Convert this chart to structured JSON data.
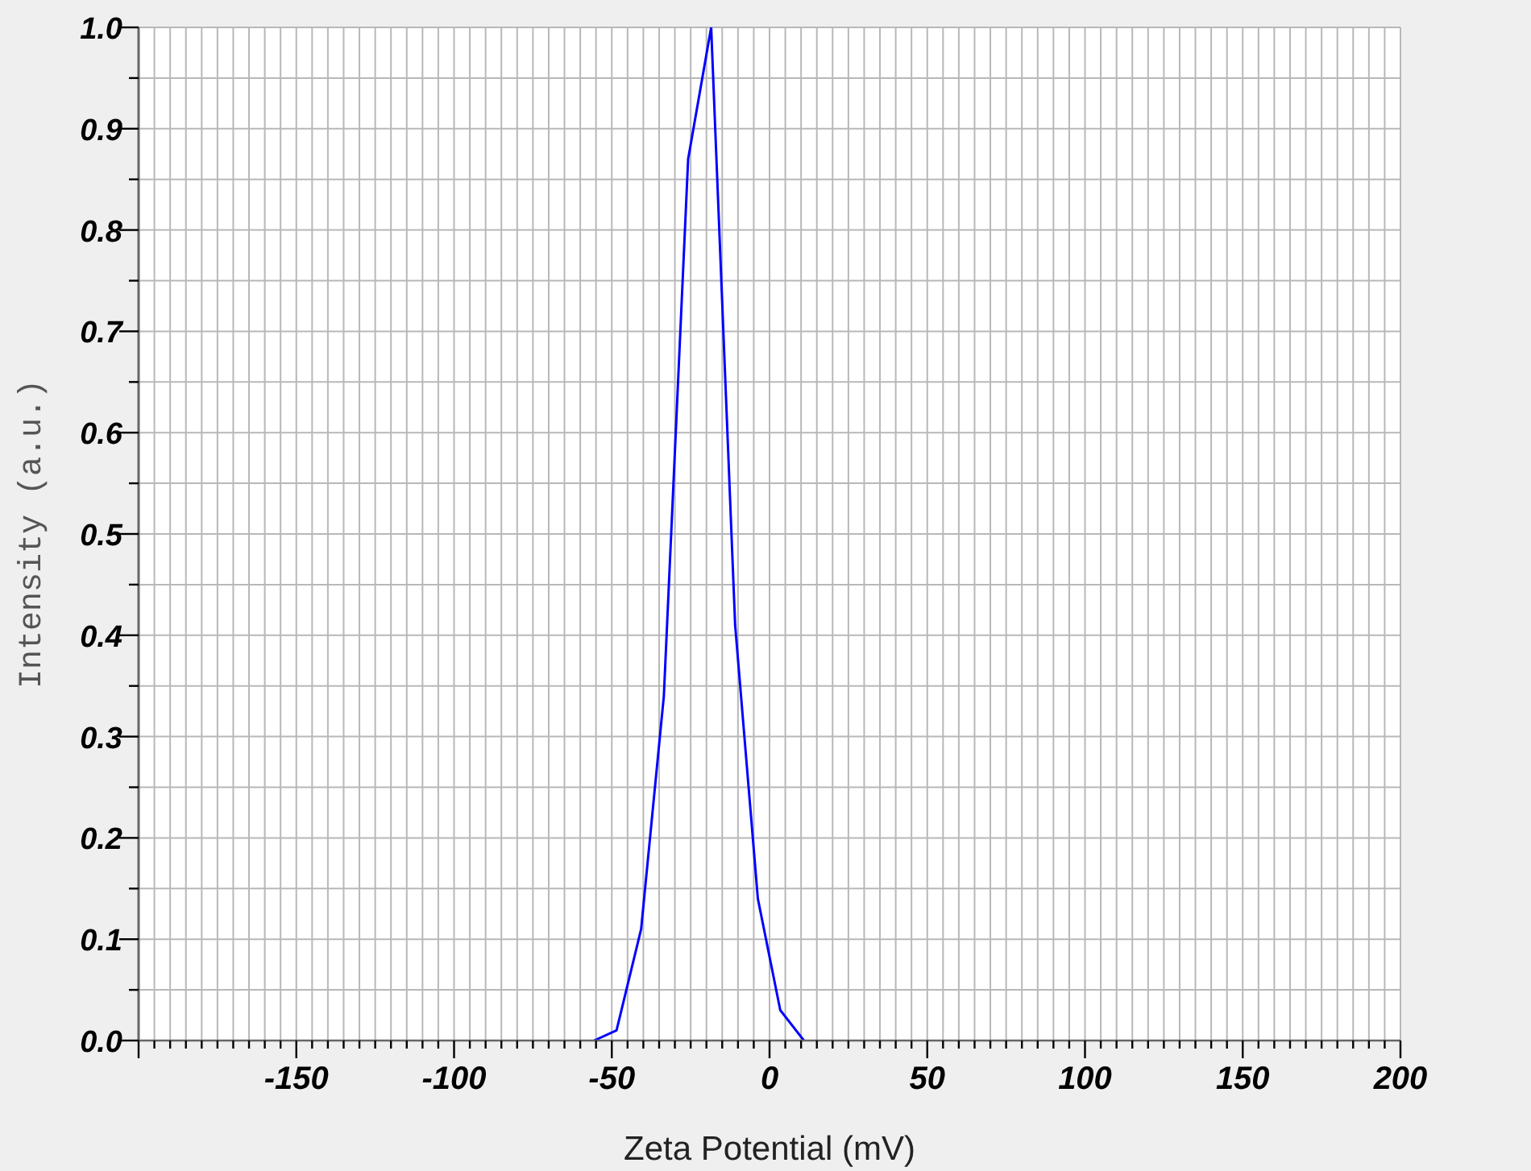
{
  "chart_data": {
    "type": "line",
    "xlabel": "Zeta Potential (mV)",
    "ylabel": "Intensity (a.u.)",
    "x": [
      -55.6,
      -48.5,
      -40.7,
      -33.5,
      -25.8,
      -18.5,
      -10.9,
      -3.7,
      3.4,
      10.9
    ],
    "series": [
      {
        "color": "#0000ff",
        "values": [
          0,
          0.01,
          0.11,
          0.34,
          0.87,
          1.0,
          0.41,
          0.14,
          0.03,
          0
        ]
      }
    ],
    "xlim": [
      -200,
      200
    ],
    "ylim": [
      0,
      1
    ],
    "xticks": [
      {
        "value": -200,
        "label": null
      },
      {
        "value": -195,
        "label": null
      },
      {
        "value": -190,
        "label": null
      },
      {
        "value": -185,
        "label": null
      },
      {
        "value": -180,
        "label": null
      },
      {
        "value": -175,
        "label": null
      },
      {
        "value": -170,
        "label": null
      },
      {
        "value": -165,
        "label": null
      },
      {
        "value": -160,
        "label": null
      },
      {
        "value": -155,
        "label": null
      },
      -150,
      {
        "value": -145,
        "label": null
      },
      {
        "value": -140,
        "label": null
      },
      {
        "value": -135,
        "label": null
      },
      {
        "value": -130,
        "label": null
      },
      {
        "value": -125,
        "label": null
      },
      {
        "value": -120,
        "label": null
      },
      {
        "value": -115,
        "label": null
      },
      {
        "value": -110,
        "label": null
      },
      {
        "value": -105,
        "label": null
      },
      -100,
      {
        "value": -95,
        "label": null
      },
      {
        "value": -90,
        "label": null
      },
      {
        "value": -85,
        "label": null
      },
      {
        "value": -80,
        "label": null
      },
      {
        "value": -75,
        "label": null
      },
      {
        "value": -70,
        "label": null
      },
      {
        "value": -65,
        "label": null
      },
      {
        "value": -60,
        "label": null
      },
      {
        "value": -55,
        "label": null
      },
      -50,
      {
        "value": -45,
        "label": null
      },
      {
        "value": -40,
        "label": null
      },
      {
        "value": -35,
        "label": null
      },
      {
        "value": -30,
        "label": null
      },
      {
        "value": -25,
        "label": null
      },
      {
        "value": -20,
        "label": null
      },
      {
        "value": -15,
        "label": null
      },
      {
        "value": -10,
        "label": null
      },
      {
        "value": -5,
        "label": null
      },
      0,
      {
        "value": 5,
        "label": null
      },
      {
        "value": 10,
        "label": null
      },
      {
        "value": 15,
        "label": null
      },
      {
        "value": 20,
        "label": null
      },
      {
        "value": 25,
        "label": null
      },
      {
        "value": 30,
        "label": null
      },
      {
        "value": 35,
        "label": null
      },
      {
        "value": 40,
        "label": null
      },
      {
        "value": 45,
        "label": null
      },
      50,
      {
        "value": 55,
        "label": null
      },
      {
        "value": 60,
        "label": null
      },
      {
        "value": 65,
        "label": null
      },
      {
        "value": 70,
        "label": null
      },
      {
        "value": 75,
        "label": null
      },
      {
        "value": 80,
        "label": null
      },
      {
        "value": 85,
        "label": null
      },
      {
        "value": 90,
        "label": null
      },
      {
        "value": 95,
        "label": null
      },
      100,
      {
        "value": 105,
        "label": null
      },
      {
        "value": 110,
        "label": null
      },
      {
        "value": 115,
        "label": null
      },
      {
        "value": 120,
        "label": null
      },
      {
        "value": 125,
        "label": null
      },
      {
        "value": 130,
        "label": null
      },
      {
        "value": 135,
        "label": null
      },
      {
        "value": 140,
        "label": null
      },
      {
        "value": 145,
        "label": null
      },
      150,
      {
        "value": 155,
        "label": null
      },
      {
        "value": 160,
        "label": null
      },
      {
        "value": 165,
        "label": null
      },
      {
        "value": 170,
        "label": null
      },
      {
        "value": 175,
        "label": null
      },
      {
        "value": 180,
        "label": null
      },
      {
        "value": 185,
        "label": null
      },
      {
        "value": 190,
        "label": null
      },
      {
        "value": 195,
        "label": null
      },
      200
    ],
    "yticks": [
      {
        "value": 0,
        "label": "0.0"
      },
      {
        "value": 0.05,
        "label": null
      },
      0.1,
      {
        "value": 0.15,
        "label": null
      },
      0.2,
      {
        "value": 0.25,
        "label": null
      },
      0.3,
      {
        "value": 0.35,
        "label": null
      },
      0.4,
      {
        "value": 0.45,
        "label": null
      },
      0.5,
      {
        "value": 0.55,
        "label": null
      },
      0.6,
      {
        "value": 0.65,
        "label": null
      },
      0.7,
      {
        "value": 0.75,
        "label": null
      },
      0.8,
      {
        "value": 0.85,
        "label": null
      },
      0.9,
      {
        "value": 0.95,
        "label": null
      },
      {
        "value": 1,
        "label": "1.0"
      }
    ],
    "grid": true
  }
}
